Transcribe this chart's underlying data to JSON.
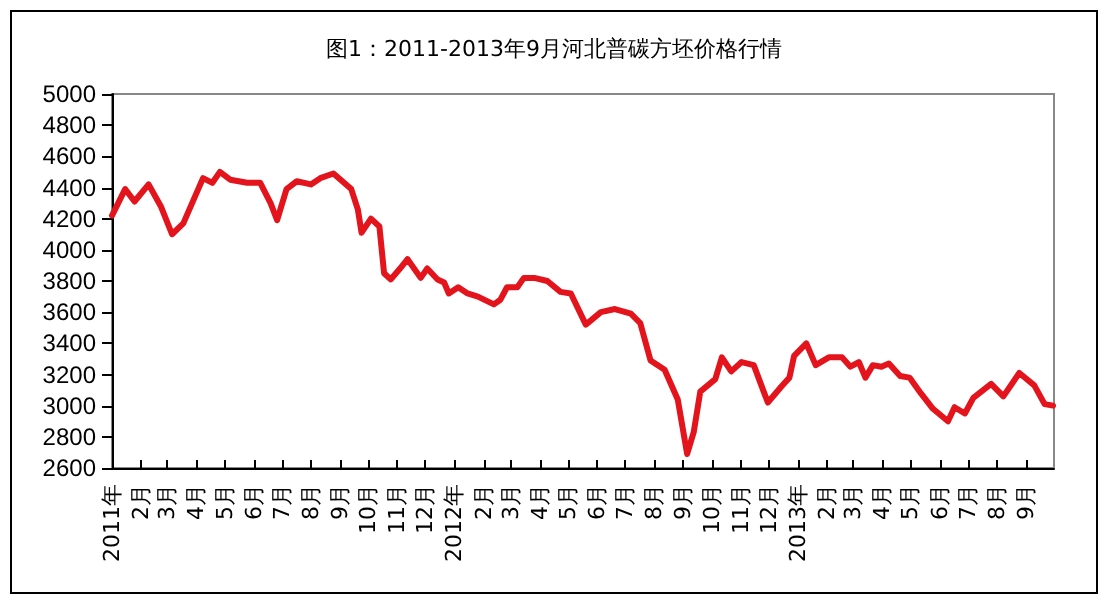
{
  "chart_data": {
    "type": "line",
    "title": "图1：2011-2013年9月河北普碳方坯价格行情",
    "x": [
      "2011-01-01",
      "2011-01-15",
      "2011-01-25",
      "2011-02-09",
      "2011-02-22",
      "2011-03-06",
      "2011-03-18",
      "2011-04-08",
      "2011-04-18",
      "2011-04-26",
      "2011-05-07",
      "2011-05-25",
      "2011-06-08",
      "2011-06-19",
      "2011-06-26",
      "2011-07-06",
      "2011-07-17",
      "2011-08-01",
      "2011-08-11",
      "2011-08-25",
      "2011-09-13",
      "2011-09-20",
      "2011-09-24",
      "2011-10-04",
      "2011-10-13",
      "2011-10-18",
      "2011-10-25",
      "2011-11-04",
      "2011-11-12",
      "2011-11-26",
      "2011-12-03",
      "2011-12-14",
      "2011-12-21",
      "2011-12-26",
      "2012-01-05",
      "2012-01-15",
      "2012-01-26",
      "2012-02-12",
      "2012-02-19",
      "2012-02-26",
      "2012-03-08",
      "2012-03-15",
      "2012-03-26",
      "2012-04-09",
      "2012-04-23",
      "2012-05-04",
      "2012-05-20",
      "2012-06-05",
      "2012-06-20",
      "2012-07-07",
      "2012-07-17",
      "2012-07-28",
      "2012-08-12",
      "2012-08-26",
      "2012-09-05",
      "2012-09-12",
      "2012-09-19",
      "2012-10-05",
      "2012-10-12",
      "2012-10-22",
      "2012-11-02",
      "2012-11-15",
      "2012-11-30",
      "2012-12-14",
      "2012-12-23",
      "2012-12-28",
      "2013-01-10",
      "2013-01-20",
      "2013-02-03",
      "2013-02-17",
      "2013-02-26",
      "2013-03-07",
      "2013-03-14",
      "2013-03-22",
      "2013-03-31",
      "2013-04-08",
      "2013-04-20",
      "2013-04-30",
      "2013-05-12",
      "2013-05-25",
      "2013-06-10",
      "2013-06-17",
      "2013-06-28",
      "2013-07-07",
      "2013-07-26",
      "2013-08-08",
      "2013-08-25",
      "2013-09-10",
      "2013-09-21",
      "2013-09-30"
    ],
    "series": [
      {
        "color": "#e3141b",
        "values": [
          4220,
          4390,
          4310,
          4420,
          4280,
          4100,
          4170,
          4460,
          4430,
          4500,
          4450,
          4430,
          4430,
          4300,
          4190,
          4390,
          4440,
          4420,
          4460,
          4490,
          4390,
          4260,
          4110,
          4200,
          4150,
          3850,
          3810,
          3880,
          3940,
          3820,
          3880,
          3810,
          3790,
          3720,
          3760,
          3720,
          3700,
          3650,
          3680,
          3760,
          3760,
          3820,
          3820,
          3800,
          3730,
          3720,
          3520,
          3600,
          3620,
          3590,
          3530,
          3290,
          3230,
          3040,
          2690,
          2830,
          3090,
          3170,
          3310,
          3220,
          3280,
          3260,
          3020,
          3120,
          3180,
          3320,
          3400,
          3260,
          3310,
          3310,
          3250,
          3280,
          3180,
          3260,
          3250,
          3270,
          3190,
          3180,
          3080,
          2980,
          2900,
          2990,
          2950,
          3050,
          3140,
          3060,
          3210,
          3130,
          3010,
          3000
        ]
      }
    ],
    "xlim": [
      "2011-01-01",
      "2013-10-01"
    ],
    "xticks": [
      {
        "value": "2011-01-01",
        "label": "2011年"
      },
      {
        "value": "2011-02-01",
        "label": "2月"
      },
      {
        "value": "2011-03-01",
        "label": "3月"
      },
      {
        "value": "2011-04-01",
        "label": "4月"
      },
      {
        "value": "2011-05-01",
        "label": "5月"
      },
      {
        "value": "2011-06-01",
        "label": "6月"
      },
      {
        "value": "2011-07-01",
        "label": "7月"
      },
      {
        "value": "2011-08-01",
        "label": "8月"
      },
      {
        "value": "2011-09-01",
        "label": "9月"
      },
      {
        "value": "2011-10-01",
        "label": "10月"
      },
      {
        "value": "2011-11-01",
        "label": "11月"
      },
      {
        "value": "2011-12-01",
        "label": "12月"
      },
      {
        "value": "2012-01-01",
        "label": "2012年"
      },
      {
        "value": "2012-02-01",
        "label": "2月"
      },
      {
        "value": "2012-03-01",
        "label": "3月"
      },
      {
        "value": "2012-04-01",
        "label": "4月"
      },
      {
        "value": "2012-05-01",
        "label": "5月"
      },
      {
        "value": "2012-06-01",
        "label": "6月"
      },
      {
        "value": "2012-07-01",
        "label": "7月"
      },
      {
        "value": "2012-08-01",
        "label": "8月"
      },
      {
        "value": "2012-09-01",
        "label": "9月"
      },
      {
        "value": "2012-10-01",
        "label": "10月"
      },
      {
        "value": "2012-11-01",
        "label": "11月"
      },
      {
        "value": "2012-12-01",
        "label": "12月"
      },
      {
        "value": "2013-01-01",
        "label": "2013年"
      },
      {
        "value": "2013-02-01",
        "label": "2月"
      },
      {
        "value": "2013-03-01",
        "label": "3月"
      },
      {
        "value": "2013-04-01",
        "label": "4月"
      },
      {
        "value": "2013-05-01",
        "label": "5月"
      },
      {
        "value": "2013-06-01",
        "label": "6月"
      },
      {
        "value": "2013-07-01",
        "label": "7月"
      },
      {
        "value": "2013-08-01",
        "label": "8月"
      },
      {
        "value": "2013-09-01",
        "label": "9月"
      }
    ],
    "ylim": [
      2600,
      5000
    ],
    "yticks": [
      2600,
      2800,
      3000,
      3200,
      3400,
      3600,
      3800,
      4000,
      4200,
      4400,
      4600,
      4800,
      5000
    ],
    "grid": false,
    "marker": "none",
    "line_style": "solid"
  }
}
